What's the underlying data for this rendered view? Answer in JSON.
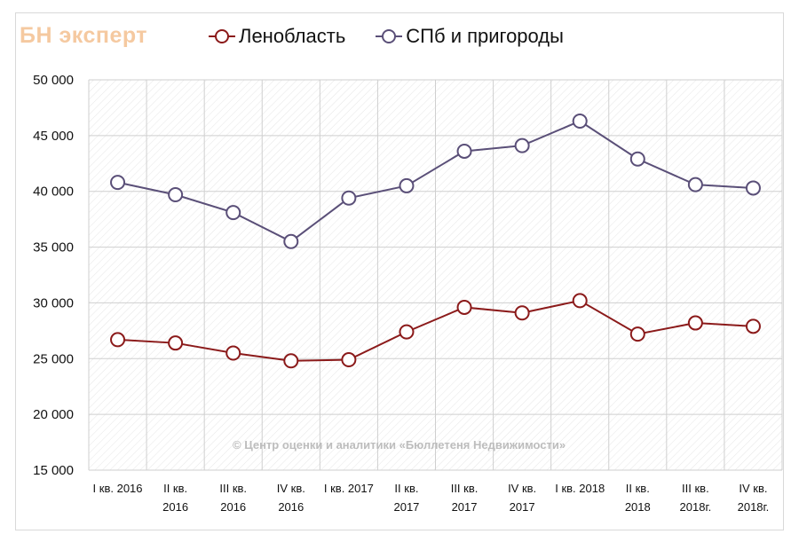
{
  "logo": "БН эксперт",
  "watermark": "© Центр оценки и аналитики «Бюллетеня Недвижимости»",
  "colors": {
    "series1": "#8b1a1a",
    "series2": "#5a4f78",
    "grid": "#cfcfcf",
    "hatch": "#e8e8e8"
  },
  "chart_data": {
    "type": "line",
    "categories": [
      [
        "I кв. 2016"
      ],
      [
        "II кв.",
        "2016"
      ],
      [
        "III кв.",
        "2016"
      ],
      [
        "IV кв.",
        "2016"
      ],
      [
        "I кв. 2017"
      ],
      [
        "II кв.",
        "2017"
      ],
      [
        "III кв.",
        "2017"
      ],
      [
        "IV кв.",
        "2017"
      ],
      [
        "I кв. 2018"
      ],
      [
        "II кв.",
        "2018"
      ],
      [
        "III кв.",
        "2018г."
      ],
      [
        "IV кв.",
        "2018г."
      ]
    ],
    "series": [
      {
        "name": "Ленобласть",
        "values": [
          26700,
          26400,
          25500,
          24800,
          24900,
          27400,
          29600,
          29100,
          30200,
          27200,
          28200,
          27900
        ]
      },
      {
        "name": "СПб и пригороды",
        "values": [
          40800,
          39700,
          38100,
          35500,
          39400,
          40500,
          43600,
          44100,
          46300,
          42900,
          40600,
          40300
        ]
      }
    ],
    "yticks": [
      "15 000",
      "20 000",
      "25 000",
      "30 000",
      "35 000",
      "40 000",
      "45 000",
      "50 000"
    ],
    "ylim": [
      15000,
      50000
    ],
    "grid": true,
    "legend_position": "top"
  }
}
